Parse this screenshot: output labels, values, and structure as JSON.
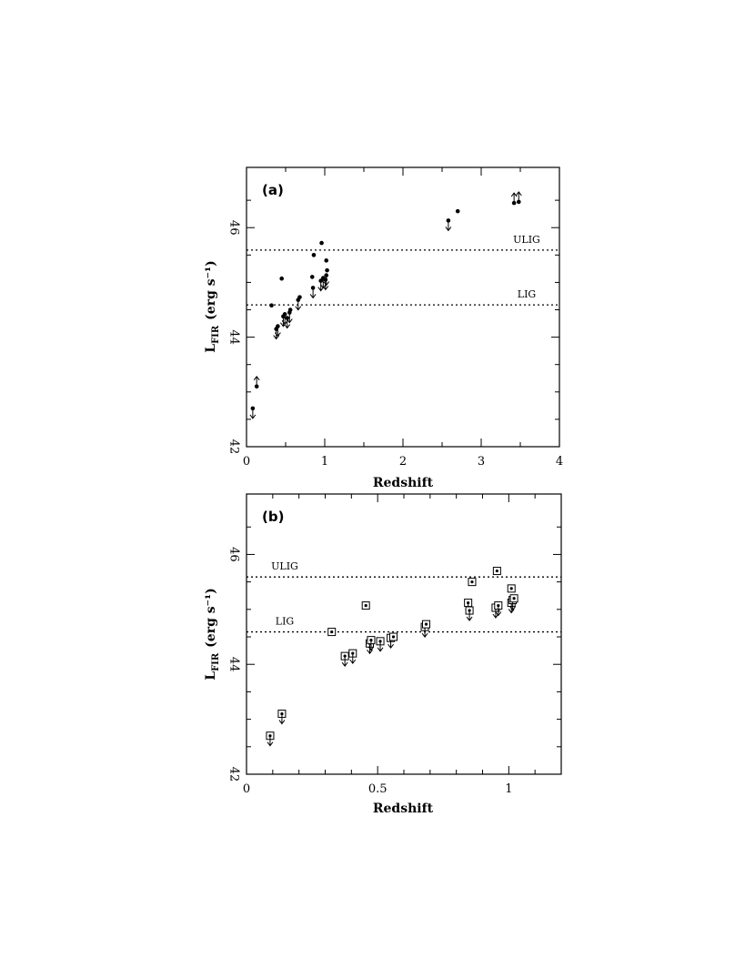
{
  "chart_data": [
    {
      "type": "scatter",
      "panel_label": "(a)",
      "xlabel": "Redshift",
      "ylabel_main": "L",
      "ylabel_sub": "FIR",
      "ylabel_units": "(erg s⁻¹)",
      "xlim": [
        0,
        4
      ],
      "ylim": [
        42,
        47.1
      ],
      "xticks": [
        "0",
        "1",
        "2",
        "3",
        "4"
      ],
      "yticks": [
        "42",
        "44",
        "46"
      ],
      "reference_lines": [
        {
          "label": "ULIG",
          "y": 45.59
        },
        {
          "label": "LIG",
          "y": 44.59
        }
      ],
      "points": [
        {
          "x": 0.08,
          "y": 42.7,
          "limit": "upper"
        },
        {
          "x": 0.13,
          "y": 43.1,
          "limit": "lower"
        },
        {
          "x": 0.32,
          "y": 44.58,
          "limit": "none"
        },
        {
          "x": 0.38,
          "y": 44.15,
          "limit": "upper"
        },
        {
          "x": 0.4,
          "y": 44.2,
          "limit": "upper"
        },
        {
          "x": 0.45,
          "y": 45.07,
          "limit": "none"
        },
        {
          "x": 0.47,
          "y": 44.38,
          "limit": "upper"
        },
        {
          "x": 0.49,
          "y": 44.42,
          "limit": "upper"
        },
        {
          "x": 0.52,
          "y": 44.35,
          "limit": "upper"
        },
        {
          "x": 0.55,
          "y": 44.45,
          "limit": "upper"
        },
        {
          "x": 0.56,
          "y": 44.5,
          "limit": "none"
        },
        {
          "x": 0.66,
          "y": 44.68,
          "limit": "upper"
        },
        {
          "x": 0.68,
          "y": 44.73,
          "limit": "none"
        },
        {
          "x": 0.84,
          "y": 45.1,
          "limit": "none"
        },
        {
          "x": 0.85,
          "y": 44.9,
          "limit": "upper"
        },
        {
          "x": 0.86,
          "y": 45.5,
          "limit": "none"
        },
        {
          "x": 0.95,
          "y": 45.03,
          "limit": "upper"
        },
        {
          "x": 0.96,
          "y": 45.72,
          "limit": "none"
        },
        {
          "x": 0.98,
          "y": 45.08,
          "limit": "upper"
        },
        {
          "x": 1.01,
          "y": 45.05,
          "limit": "upper"
        },
        {
          "x": 1.02,
          "y": 45.13,
          "limit": "upper"
        },
        {
          "x": 1.02,
          "y": 45.4,
          "limit": "none"
        },
        {
          "x": 1.03,
          "y": 45.22,
          "limit": "none"
        },
        {
          "x": 2.58,
          "y": 46.13,
          "limit": "upper"
        },
        {
          "x": 2.7,
          "y": 46.3,
          "limit": "none"
        },
        {
          "x": 3.42,
          "y": 46.45,
          "limit": "lower"
        },
        {
          "x": 3.48,
          "y": 46.47,
          "limit": "lower"
        }
      ]
    },
    {
      "type": "scatter",
      "panel_label": "(b)",
      "xlabel": "Redshift",
      "ylabel_main": "L",
      "ylabel_sub": "FIR",
      "ylabel_units": "(erg s⁻¹)",
      "xlim": [
        0,
        1.2
      ],
      "ylim": [
        42,
        47.1
      ],
      "xticks": [
        "0",
        "0.5",
        "1"
      ],
      "yticks": [
        "42",
        "44",
        "46"
      ],
      "reference_lines": [
        {
          "label": "ULIG",
          "y": 45.59
        },
        {
          "label": "LIG",
          "y": 44.59
        }
      ],
      "points": [
        {
          "x": 0.09,
          "y": 42.7,
          "limit": "upper"
        },
        {
          "x": 0.135,
          "y": 43.1,
          "limit": "upper"
        },
        {
          "x": 0.325,
          "y": 44.59,
          "limit": "none"
        },
        {
          "x": 0.375,
          "y": 44.15,
          "limit": "upper"
        },
        {
          "x": 0.405,
          "y": 44.2,
          "limit": "upper"
        },
        {
          "x": 0.455,
          "y": 45.07,
          "limit": "none"
        },
        {
          "x": 0.47,
          "y": 44.38,
          "limit": "upper"
        },
        {
          "x": 0.475,
          "y": 44.44,
          "limit": "upper"
        },
        {
          "x": 0.51,
          "y": 44.42,
          "limit": "upper"
        },
        {
          "x": 0.55,
          "y": 44.48,
          "limit": "upper"
        },
        {
          "x": 0.56,
          "y": 44.5,
          "limit": "none"
        },
        {
          "x": 0.68,
          "y": 44.68,
          "limit": "upper"
        },
        {
          "x": 0.685,
          "y": 44.73,
          "limit": "none"
        },
        {
          "x": 0.845,
          "y": 45.12,
          "limit": "upper"
        },
        {
          "x": 0.85,
          "y": 44.98,
          "limit": "upper"
        },
        {
          "x": 0.86,
          "y": 45.5,
          "limit": "none"
        },
        {
          "x": 0.95,
          "y": 45.03,
          "limit": "upper"
        },
        {
          "x": 0.955,
          "y": 45.7,
          "limit": "none"
        },
        {
          "x": 0.96,
          "y": 45.07,
          "limit": "upper"
        },
        {
          "x": 1.01,
          "y": 45.12,
          "limit": "upper"
        },
        {
          "x": 1.015,
          "y": 45.17,
          "limit": "upper"
        },
        {
          "x": 1.01,
          "y": 45.38,
          "limit": "none"
        },
        {
          "x": 1.02,
          "y": 45.2,
          "limit": "none"
        }
      ]
    }
  ]
}
